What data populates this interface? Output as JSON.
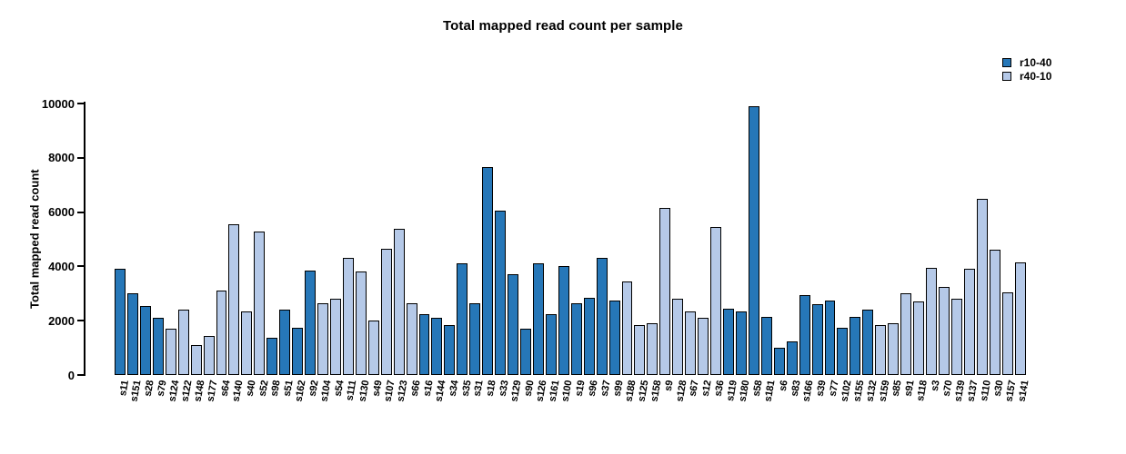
{
  "chart_data": {
    "type": "bar",
    "title": "Total mapped read count per sample",
    "ylabel": "Total mapped read count",
    "xlabel": "",
    "ylim": [
      0,
      10000
    ],
    "yticks": [
      0,
      2000,
      4000,
      6000,
      8000,
      10000
    ],
    "grid": false,
    "legend_position": "top-right",
    "series": [
      {
        "name": "r10-40",
        "color": "#2677b8"
      },
      {
        "name": "r40-10",
        "color": "#b5c9e8"
      }
    ],
    "bars": [
      {
        "label": "s11",
        "value": 3900,
        "series": "r10-40"
      },
      {
        "label": "s151",
        "value": 3000,
        "series": "r10-40"
      },
      {
        "label": "s28",
        "value": 2550,
        "series": "r10-40"
      },
      {
        "label": "s79",
        "value": 2100,
        "series": "r10-40"
      },
      {
        "label": "s124",
        "value": 1700,
        "series": "r40-10"
      },
      {
        "label": "s122",
        "value": 2400,
        "series": "r40-10"
      },
      {
        "label": "s148",
        "value": 1100,
        "series": "r40-10"
      },
      {
        "label": "s177",
        "value": 1450,
        "series": "r40-10"
      },
      {
        "label": "s64",
        "value": 3100,
        "series": "r40-10"
      },
      {
        "label": "s140",
        "value": 5550,
        "series": "r40-10"
      },
      {
        "label": "s40",
        "value": 2350,
        "series": "r40-10"
      },
      {
        "label": "s52",
        "value": 5300,
        "series": "r40-10"
      },
      {
        "label": "s98",
        "value": 1370,
        "series": "r10-40"
      },
      {
        "label": "s51",
        "value": 2400,
        "series": "r10-40"
      },
      {
        "label": "s162",
        "value": 1750,
        "series": "r10-40"
      },
      {
        "label": "s92",
        "value": 3850,
        "series": "r10-40"
      },
      {
        "label": "s104",
        "value": 2650,
        "series": "r40-10"
      },
      {
        "label": "s54",
        "value": 2800,
        "series": "r40-10"
      },
      {
        "label": "s111",
        "value": 4300,
        "series": "r40-10"
      },
      {
        "label": "s130",
        "value": 3800,
        "series": "r40-10"
      },
      {
        "label": "s49",
        "value": 2000,
        "series": "r40-10"
      },
      {
        "label": "s107",
        "value": 4650,
        "series": "r40-10"
      },
      {
        "label": "s123",
        "value": 5400,
        "series": "r40-10"
      },
      {
        "label": "s66",
        "value": 2650,
        "series": "r40-10"
      },
      {
        "label": "s16",
        "value": 2250,
        "series": "r10-40"
      },
      {
        "label": "s144",
        "value": 2100,
        "series": "r10-40"
      },
      {
        "label": "s34",
        "value": 1850,
        "series": "r10-40"
      },
      {
        "label": "s35",
        "value": 4100,
        "series": "r10-40"
      },
      {
        "label": "s31",
        "value": 2650,
        "series": "r10-40"
      },
      {
        "label": "s18",
        "value": 7650,
        "series": "r10-40"
      },
      {
        "label": "s33",
        "value": 6050,
        "series": "r10-40"
      },
      {
        "label": "s129",
        "value": 3700,
        "series": "r10-40"
      },
      {
        "label": "s90",
        "value": 1700,
        "series": "r10-40"
      },
      {
        "label": "s126",
        "value": 4100,
        "series": "r10-40"
      },
      {
        "label": "s161",
        "value": 2250,
        "series": "r10-40"
      },
      {
        "label": "s100",
        "value": 4000,
        "series": "r10-40"
      },
      {
        "label": "s19",
        "value": 2650,
        "series": "r10-40"
      },
      {
        "label": "s96",
        "value": 2850,
        "series": "r10-40"
      },
      {
        "label": "s37",
        "value": 4300,
        "series": "r10-40"
      },
      {
        "label": "s99",
        "value": 2750,
        "series": "r10-40"
      },
      {
        "label": "s188",
        "value": 3450,
        "series": "r40-10"
      },
      {
        "label": "s125",
        "value": 1850,
        "series": "r40-10"
      },
      {
        "label": "s158",
        "value": 1900,
        "series": "r40-10"
      },
      {
        "label": "s9",
        "value": 6150,
        "series": "r40-10"
      },
      {
        "label": "s128",
        "value": 2800,
        "series": "r40-10"
      },
      {
        "label": "s67",
        "value": 2350,
        "series": "r40-10"
      },
      {
        "label": "s12",
        "value": 2100,
        "series": "r40-10"
      },
      {
        "label": "s36",
        "value": 5450,
        "series": "r40-10"
      },
      {
        "label": "s119",
        "value": 2450,
        "series": "r10-40"
      },
      {
        "label": "s180",
        "value": 2350,
        "series": "r10-40"
      },
      {
        "label": "s58",
        "value": 9900,
        "series": "r10-40"
      },
      {
        "label": "s181",
        "value": 2150,
        "series": "r10-40"
      },
      {
        "label": "s6",
        "value": 1000,
        "series": "r10-40"
      },
      {
        "label": "s83",
        "value": 1250,
        "series": "r10-40"
      },
      {
        "label": "s166",
        "value": 2950,
        "series": "r10-40"
      },
      {
        "label": "s39",
        "value": 2600,
        "series": "r10-40"
      },
      {
        "label": "s77",
        "value": 2750,
        "series": "r10-40"
      },
      {
        "label": "s102",
        "value": 1750,
        "series": "r10-40"
      },
      {
        "label": "s155",
        "value": 2150,
        "series": "r10-40"
      },
      {
        "label": "s132",
        "value": 2400,
        "series": "r10-40"
      },
      {
        "label": "s159",
        "value": 1850,
        "series": "r40-10"
      },
      {
        "label": "s85",
        "value": 1900,
        "series": "r40-10"
      },
      {
        "label": "s91",
        "value": 3000,
        "series": "r40-10"
      },
      {
        "label": "s118",
        "value": 2700,
        "series": "r40-10"
      },
      {
        "label": "s3",
        "value": 3950,
        "series": "r40-10"
      },
      {
        "label": "s70",
        "value": 3250,
        "series": "r40-10"
      },
      {
        "label": "s139",
        "value": 2800,
        "series": "r40-10"
      },
      {
        "label": "s137",
        "value": 3900,
        "series": "r40-10"
      },
      {
        "label": "s110",
        "value": 6500,
        "series": "r40-10"
      },
      {
        "label": "s30",
        "value": 4600,
        "series": "r40-10"
      },
      {
        "label": "s157",
        "value": 3050,
        "series": "r40-10"
      },
      {
        "label": "s141",
        "value": 4150,
        "series": "r40-10"
      }
    ]
  }
}
